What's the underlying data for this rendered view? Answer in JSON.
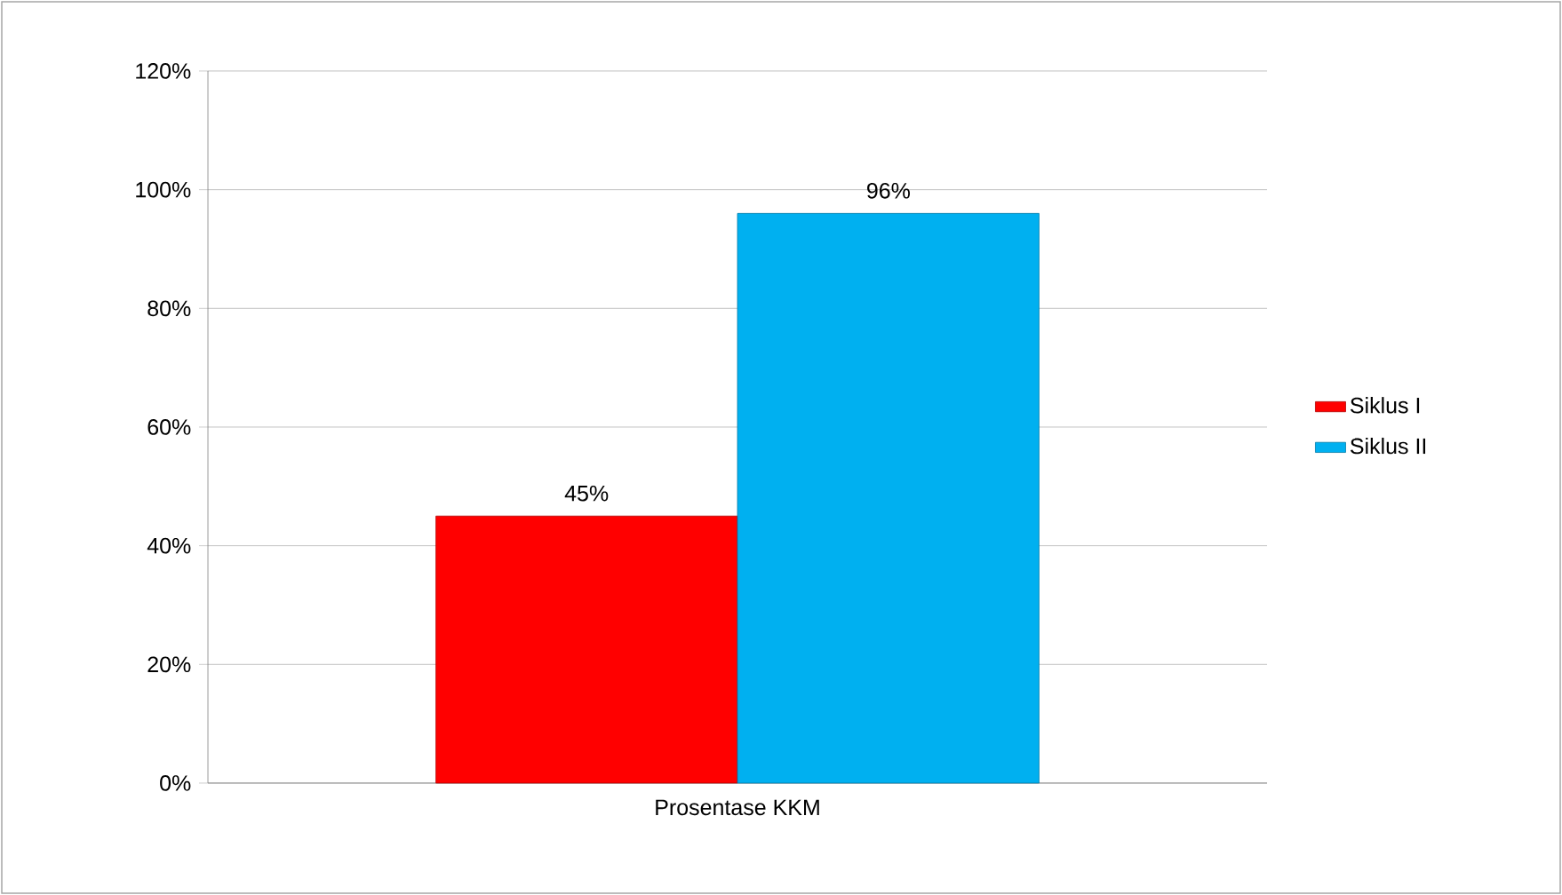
{
  "chart_data": {
    "type": "bar",
    "categories": [
      "Prosentase KKM"
    ],
    "series": [
      {
        "name": "Siklus I",
        "color": "#ff0000",
        "values": [
          45
        ],
        "value_labels": [
          "45%"
        ]
      },
      {
        "name": "Siklus II",
        "color": "#00b0f0",
        "values": [
          96
        ],
        "value_labels": [
          "96%"
        ]
      }
    ],
    "ylim": [
      0,
      120
    ],
    "yticks": [
      {
        "value": 0,
        "label": "0%"
      },
      {
        "value": 20,
        "label": "20%"
      },
      {
        "value": 40,
        "label": "40%"
      },
      {
        "value": 60,
        "label": "60%"
      },
      {
        "value": 80,
        "label": "80%"
      },
      {
        "value": 100,
        "label": "100%"
      },
      {
        "value": 120,
        "label": "120%"
      }
    ],
    "grid": "y",
    "legend": "right"
  }
}
